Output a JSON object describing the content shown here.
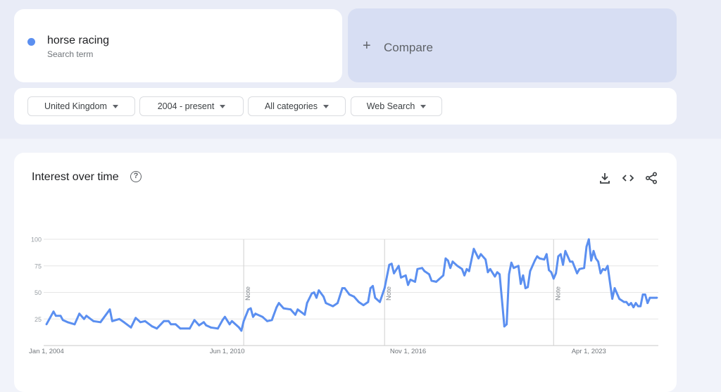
{
  "search": {
    "term": "horse racing",
    "term_type": "Search term",
    "term_color": "#5b8ff0",
    "compare_label": "Compare",
    "compare_icon": "plus-icon"
  },
  "filters": [
    {
      "label": "United Kingdom"
    },
    {
      "label": "2004 - present"
    },
    {
      "label": "All categories"
    },
    {
      "label": "Web Search"
    }
  ],
  "card": {
    "title": "Interest over time",
    "help_icon": "?",
    "actions": [
      "download-icon",
      "embed-code-icon",
      "share-icon"
    ]
  },
  "chart_data": {
    "type": "line",
    "title": "",
    "xlabel": "",
    "ylabel": "",
    "ylim": [
      0,
      100
    ],
    "xlim": [
      "2004-01",
      "2025-09"
    ],
    "y_ticks": [
      "25",
      "50",
      "75",
      "100"
    ],
    "x_ticks": [
      {
        "date": "2004-01",
        "label": "Jan 1, 2004"
      },
      {
        "date": "2010-06",
        "label": "Jun 1, 2010"
      },
      {
        "date": "2016-11",
        "label": "Nov 1, 2016"
      },
      {
        "date": "2023-04",
        "label": "Apr 1, 2023"
      }
    ],
    "notes": [
      {
        "date": "2011-01",
        "label": "Note"
      },
      {
        "date": "2016-01",
        "label": "Note"
      },
      {
        "date": "2022-01",
        "label": "Note"
      }
    ],
    "grid": true,
    "color": "#5b8ff0",
    "series": [
      {
        "name": "horse racing",
        "points": [
          [
            "2004-01",
            20
          ],
          [
            "2004-04",
            32
          ],
          [
            "2004-05",
            28
          ],
          [
            "2004-07",
            28
          ],
          [
            "2004-08",
            24
          ],
          [
            "2004-10",
            22
          ],
          [
            "2005-01",
            20
          ],
          [
            "2005-03",
            30
          ],
          [
            "2005-05",
            25
          ],
          [
            "2005-06",
            28
          ],
          [
            "2005-09",
            23
          ],
          [
            "2005-12",
            22
          ],
          [
            "2006-04",
            34
          ],
          [
            "2006-05",
            23
          ],
          [
            "2006-08",
            25
          ],
          [
            "2006-10",
            22
          ],
          [
            "2007-01",
            17
          ],
          [
            "2007-03",
            26
          ],
          [
            "2007-05",
            22
          ],
          [
            "2007-07",
            23
          ],
          [
            "2007-10",
            18
          ],
          [
            "2007-12",
            16
          ],
          [
            "2008-03",
            23
          ],
          [
            "2008-05",
            23
          ],
          [
            "2008-06",
            20
          ],
          [
            "2008-08",
            20
          ],
          [
            "2008-10",
            16
          ],
          [
            "2009-02",
            16
          ],
          [
            "2009-04",
            24
          ],
          [
            "2009-06",
            19
          ],
          [
            "2009-08",
            22
          ],
          [
            "2009-09",
            19
          ],
          [
            "2009-11",
            17
          ],
          [
            "2010-02",
            16
          ],
          [
            "2010-04",
            24
          ],
          [
            "2010-05",
            27
          ],
          [
            "2010-07",
            20
          ],
          [
            "2010-08",
            23
          ],
          [
            "2010-11",
            17
          ],
          [
            "2010-12",
            14
          ],
          [
            "2011-01",
            23
          ],
          [
            "2011-03",
            34
          ],
          [
            "2011-04",
            35
          ],
          [
            "2011-05",
            27
          ],
          [
            "2011-06",
            30
          ],
          [
            "2011-09",
            27
          ],
          [
            "2011-11",
            23
          ],
          [
            "2012-01",
            24
          ],
          [
            "2012-03",
            36
          ],
          [
            "2012-04",
            40
          ],
          [
            "2012-06",
            35
          ],
          [
            "2012-09",
            34
          ],
          [
            "2012-11",
            29
          ],
          [
            "2012-12",
            34
          ],
          [
            "2013-03",
            29
          ],
          [
            "2013-04",
            40
          ],
          [
            "2013-06",
            49
          ],
          [
            "2013-07",
            50
          ],
          [
            "2013-08",
            45
          ],
          [
            "2013-09",
            52
          ],
          [
            "2013-11",
            46
          ],
          [
            "2013-12",
            40
          ],
          [
            "2014-03",
            37
          ],
          [
            "2014-05",
            40
          ],
          [
            "2014-07",
            54
          ],
          [
            "2014-08",
            54
          ],
          [
            "2014-10",
            48
          ],
          [
            "2014-12",
            46
          ],
          [
            "2015-02",
            41
          ],
          [
            "2015-04",
            38
          ],
          [
            "2015-06",
            41
          ],
          [
            "2015-07",
            54
          ],
          [
            "2015-08",
            56
          ],
          [
            "2015-09",
            45
          ],
          [
            "2015-11",
            41
          ],
          [
            "2016-01",
            54
          ],
          [
            "2016-03",
            76
          ],
          [
            "2016-04",
            77
          ],
          [
            "2016-05",
            68
          ],
          [
            "2016-07",
            75
          ],
          [
            "2016-08",
            64
          ],
          [
            "2016-10",
            66
          ],
          [
            "2016-11",
            57
          ],
          [
            "2016-12",
            62
          ],
          [
            "2017-02",
            60
          ],
          [
            "2017-03",
            72
          ],
          [
            "2017-05",
            73
          ],
          [
            "2017-06",
            70
          ],
          [
            "2017-08",
            67
          ],
          [
            "2017-09",
            61
          ],
          [
            "2017-11",
            60
          ],
          [
            "2017-12",
            62
          ],
          [
            "2018-02",
            66
          ],
          [
            "2018-03",
            82
          ],
          [
            "2018-04",
            80
          ],
          [
            "2018-05",
            73
          ],
          [
            "2018-06",
            79
          ],
          [
            "2018-08",
            75
          ],
          [
            "2018-10",
            72
          ],
          [
            "2018-11",
            66
          ],
          [
            "2018-12",
            72
          ],
          [
            "2019-01",
            70
          ],
          [
            "2019-03",
            91
          ],
          [
            "2019-05",
            82
          ],
          [
            "2019-06",
            86
          ],
          [
            "2019-08",
            81
          ],
          [
            "2019-09",
            69
          ],
          [
            "2019-10",
            72
          ],
          [
            "2019-12",
            65
          ],
          [
            "2020-01",
            69
          ],
          [
            "2020-02",
            67
          ],
          [
            "2020-04",
            18
          ],
          [
            "2020-05",
            20
          ],
          [
            "2020-06",
            67
          ],
          [
            "2020-07",
            78
          ],
          [
            "2020-08",
            73
          ],
          [
            "2020-10",
            75
          ],
          [
            "2020-11",
            58
          ],
          [
            "2020-12",
            66
          ],
          [
            "2021-01",
            54
          ],
          [
            "2021-02",
            55
          ],
          [
            "2021-03",
            70
          ],
          [
            "2021-05",
            80
          ],
          [
            "2021-06",
            84
          ],
          [
            "2021-07",
            82
          ],
          [
            "2021-09",
            81
          ],
          [
            "2021-10",
            86
          ],
          [
            "2021-11",
            71
          ],
          [
            "2021-12",
            69
          ],
          [
            "2022-01",
            63
          ],
          [
            "2022-02",
            68
          ],
          [
            "2022-03",
            84
          ],
          [
            "2022-04",
            86
          ],
          [
            "2022-05",
            76
          ],
          [
            "2022-06",
            89
          ],
          [
            "2022-07",
            84
          ],
          [
            "2022-08",
            79
          ],
          [
            "2022-09",
            79
          ],
          [
            "2022-11",
            68
          ],
          [
            "2022-12",
            72
          ],
          [
            "2023-02",
            73
          ],
          [
            "2023-03",
            93
          ],
          [
            "2023-04",
            100
          ],
          [
            "2023-05",
            80
          ],
          [
            "2023-06",
            89
          ],
          [
            "2023-07",
            82
          ],
          [
            "2023-08",
            79
          ],
          [
            "2023-09",
            68
          ],
          [
            "2023-10",
            72
          ],
          [
            "2023-11",
            71
          ],
          [
            "2023-12",
            75
          ],
          [
            "2024-02",
            44
          ],
          [
            "2024-03",
            54
          ],
          [
            "2024-05",
            44
          ],
          [
            "2024-07",
            41
          ],
          [
            "2024-08",
            41
          ],
          [
            "2024-09",
            38
          ],
          [
            "2024-10",
            40
          ],
          [
            "2024-11",
            36
          ],
          [
            "2024-12",
            40
          ],
          [
            "2025-01",
            37
          ],
          [
            "2025-02",
            37
          ],
          [
            "2025-03",
            48
          ],
          [
            "2025-04",
            48
          ],
          [
            "2025-05",
            40
          ],
          [
            "2025-06",
            45
          ],
          [
            "2025-09",
            45
          ]
        ]
      }
    ]
  }
}
